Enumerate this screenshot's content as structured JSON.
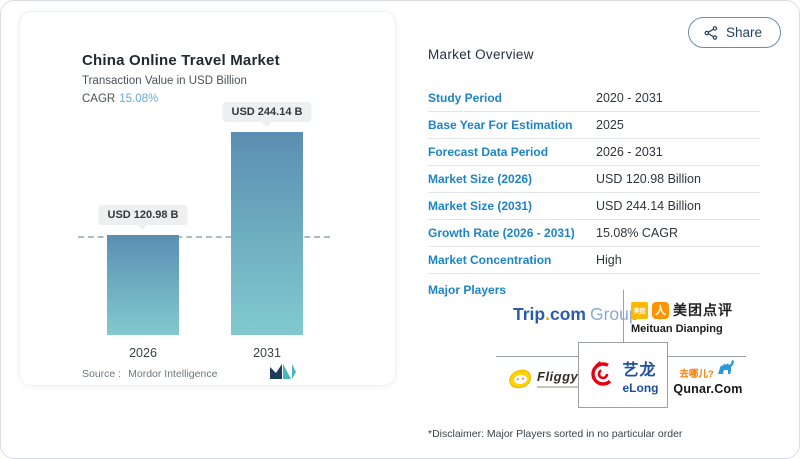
{
  "share": {
    "label": "Share"
  },
  "chart_card": {
    "title": "China Online Travel Market",
    "subtitle": "Transaction Value in USD Billion",
    "cagr_label": "CAGR",
    "cagr_value": "15.08%",
    "source_label": "Source :",
    "source_value": "Mordor Intelligence"
  },
  "chart_data": {
    "type": "bar",
    "title": "China Online Travel Market",
    "ylabel": "Transaction Value in USD Billion",
    "categories": [
      "2026",
      "2031"
    ],
    "values": [
      120.98,
      244.14
    ],
    "value_labels": [
      "USD 120.98 B",
      "USD 244.14 B"
    ],
    "ylim": [
      0,
      260
    ],
    "grid": false,
    "annotations": [
      "horizontal dashed reference line at first bar value (120.98)"
    ],
    "cagr": "15.08%"
  },
  "overview": {
    "heading": "Market Overview",
    "rows": [
      {
        "label": "Study Period",
        "value": "2020 - 2031"
      },
      {
        "label": "Base Year For Estimation",
        "value": "2025"
      },
      {
        "label": "Forecast Data Period",
        "value": "2026 - 2031"
      },
      {
        "label": "Market Size (2026)",
        "value": "USD 120.98 Billion"
      },
      {
        "label": "Market Size (2031)",
        "value": "USD 244.14 Billion"
      },
      {
        "label": "Growth Rate (2026 - 2031)",
        "value": "15.08% CAGR"
      },
      {
        "label": "Market Concentration",
        "value": "High"
      }
    ],
    "major_players_label": "Major Players",
    "players": [
      "Trip.com Group",
      "Meituan Dianping",
      "Fliggy",
      "eLong",
      "Qunar.Com"
    ],
    "disclaimer": "*Disclaimer: Major Players sorted in no particular order"
  },
  "logos": {
    "trip": {
      "part1": "Trip",
      "part2": ".com",
      "part3": "Group"
    },
    "meituan": {
      "badge": "美团",
      "person": "人",
      "cn": "美团点评",
      "en": "Meituan Dianping"
    },
    "fliggy": {
      "name": "Fliggy"
    },
    "elong": {
      "cn": "艺龙",
      "en": "eLong"
    },
    "qunar": {
      "cn": "去哪儿?",
      "en": "Qunar.Com"
    }
  },
  "colors": {
    "accent_blue": "#1d84c6",
    "cagr_blue": "#68acd1",
    "bar_top": "#5b8eb2",
    "bar_bottom": "#82c9cf",
    "pill_bg": "#edeff0",
    "share_border": "#6d8ba4",
    "divider": "#e2e6e9"
  }
}
